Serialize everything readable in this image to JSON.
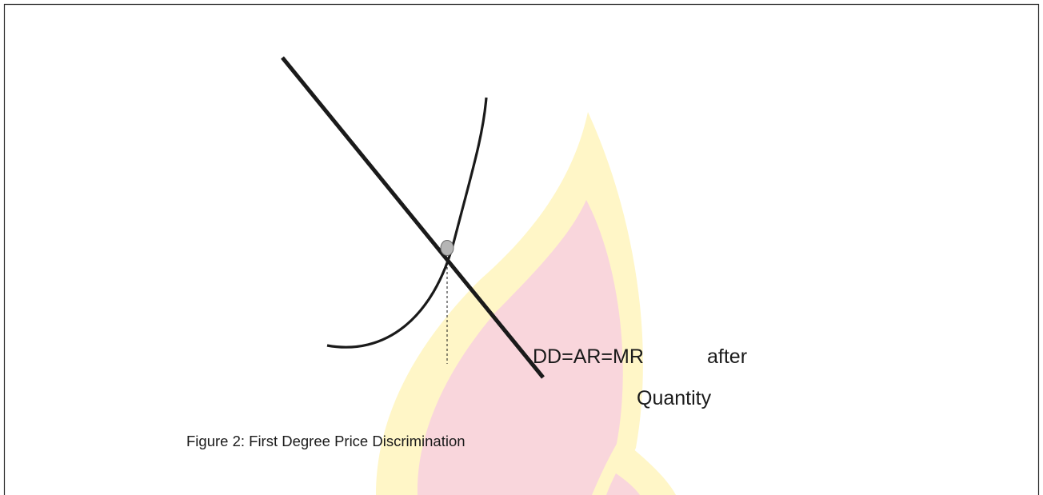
{
  "labels": {
    "demand": "DD=AR=MR",
    "after": "after",
    "x_axis": "Quantity"
  },
  "caption": "Figure 2: First Degree Price Discrimination",
  "colors": {
    "line": "#1a1a1a",
    "frame": "#2b2b2b",
    "equilibrium_dot": "#b5b5b5",
    "watermark_outer": "#fff6c7",
    "watermark_inner": "#f9d6dc"
  },
  "icons": {
    "watermark": "flame-logo-watermark"
  }
}
